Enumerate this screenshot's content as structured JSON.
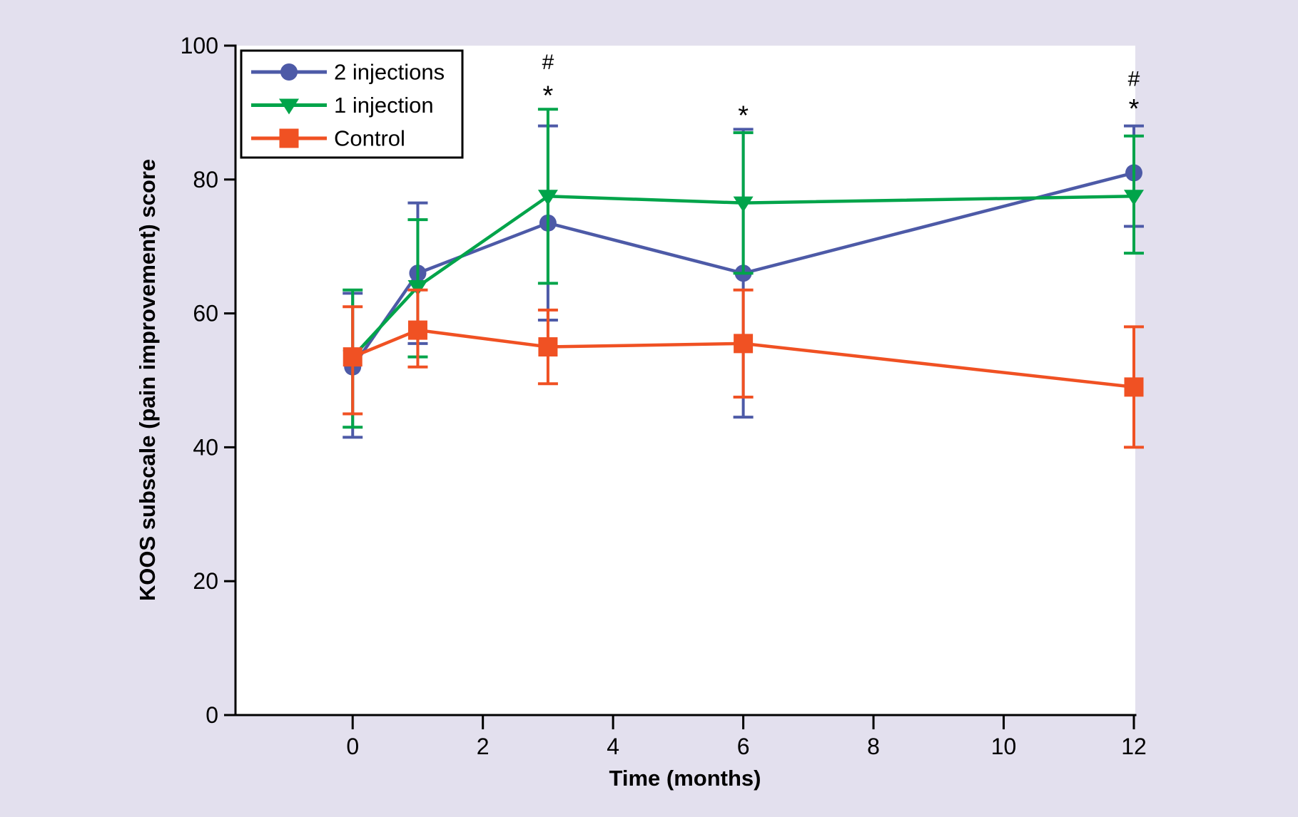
{
  "figure": {
    "background": "#e3e0ee",
    "plot_background": "#ffffff",
    "axis_color": "#000000",
    "text_color": "#000000"
  },
  "chart_data": {
    "type": "line",
    "title": "",
    "xlabel": "Time (months)",
    "ylabel": "KOOS subscale (pain improvement) score",
    "x": [
      0,
      1,
      3,
      6,
      12
    ],
    "xlim": [
      -1.8,
      12
    ],
    "ylim": [
      0,
      100
    ],
    "x_ticks": [
      0,
      2,
      4,
      6,
      8,
      10,
      12
    ],
    "y_ticks": [
      0,
      20,
      40,
      60,
      80,
      100
    ],
    "grid": false,
    "legend_position": "top-left",
    "error_bars": true,
    "series": [
      {
        "name": "2 injections",
        "color": "#4d5aa7",
        "marker": "circle",
        "values": [
          52,
          66,
          73.5,
          66,
          81
        ],
        "err_low": [
          41.5,
          55.5,
          59,
          44.5,
          73
        ],
        "err_high": [
          63,
          76.5,
          88,
          87.5,
          88
        ]
      },
      {
        "name": "1 injection",
        "color": "#00a44a",
        "marker": "triangle-down",
        "values": [
          53.5,
          64,
          77.5,
          76.5,
          77.5
        ],
        "err_low": [
          43,
          53.5,
          64.5,
          66,
          69
        ],
        "err_high": [
          63.5,
          74,
          90.5,
          87,
          86.5
        ]
      },
      {
        "name": "Control",
        "color": "#f05123",
        "marker": "square",
        "values": [
          53.5,
          57.5,
          55,
          55.5,
          49
        ],
        "err_low": [
          45,
          52,
          49.5,
          47.5,
          40
        ],
        "err_high": [
          61,
          63.5,
          60.5,
          63.5,
          58
        ]
      }
    ],
    "annotations": [
      {
        "text": "#",
        "x": 3,
        "y": 97.5
      },
      {
        "text": "*",
        "x": 3,
        "y": 92.5
      },
      {
        "text": "*",
        "x": 6,
        "y": 89.5
      },
      {
        "text": "#",
        "x": 12,
        "y": 95
      },
      {
        "text": "*",
        "x": 12,
        "y": 90.5
      }
    ]
  }
}
